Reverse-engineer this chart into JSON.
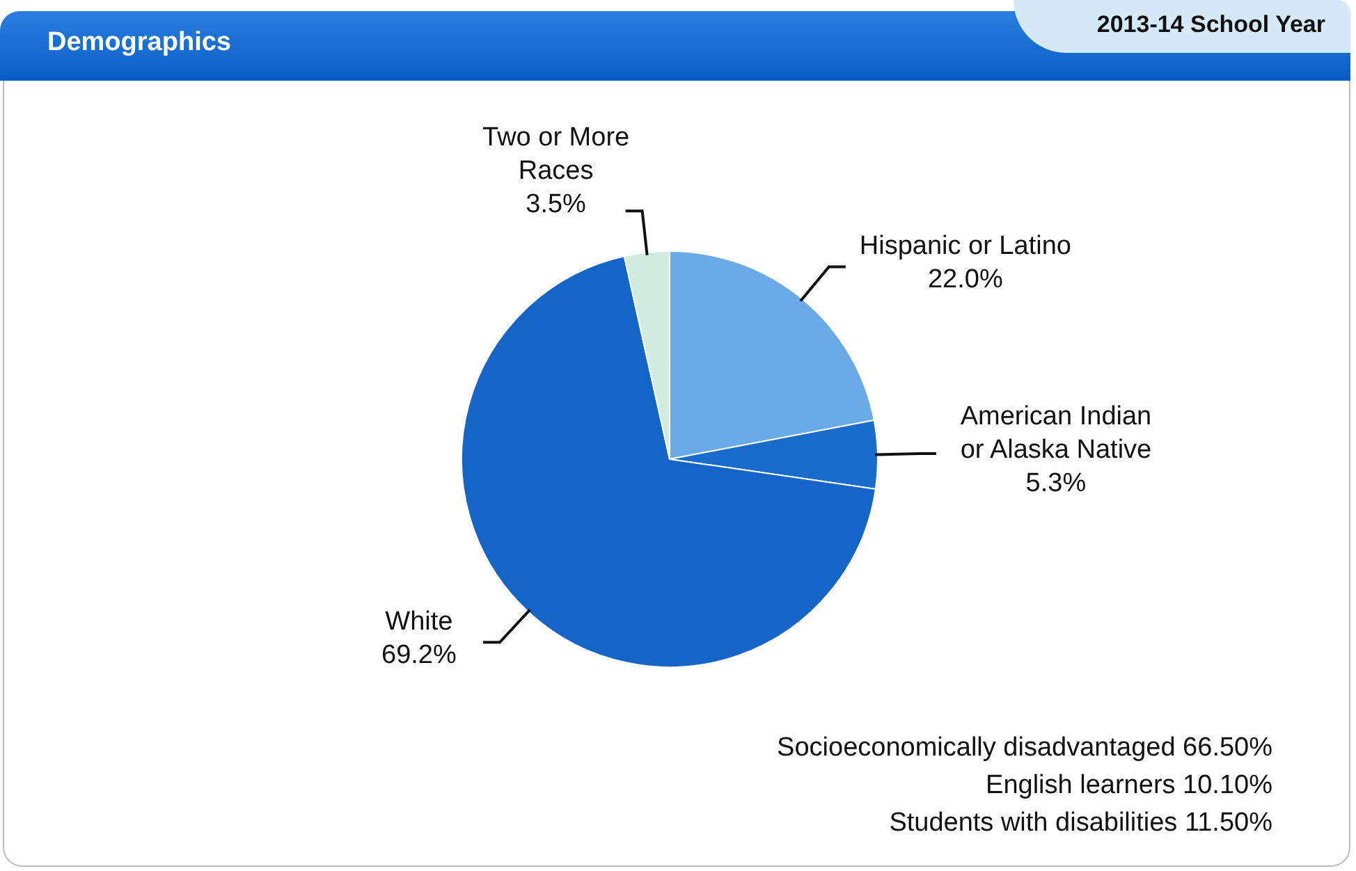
{
  "chart_data": {
    "type": "pie",
    "title": "Demographics",
    "subtitle": "2013-14 School Year",
    "categories": [
      "Hispanic or Latino",
      "American Indian or Alaska Native",
      "White",
      "Two or More Races"
    ],
    "values": [
      22.0,
      5.3,
      69.2,
      3.5
    ],
    "value_labels": [
      "22.0%",
      "5.3%",
      "69.2%",
      "3.5%"
    ],
    "colors": [
      "#6aaae6",
      "#1a6ccc",
      "#1565c8",
      "#d2ebe0"
    ],
    "annotations": [
      "Socioeconomically disadvantaged 66.50%",
      "English learners 10.10%",
      "Students with disabilities 11.50%"
    ],
    "legend": false
  }
}
